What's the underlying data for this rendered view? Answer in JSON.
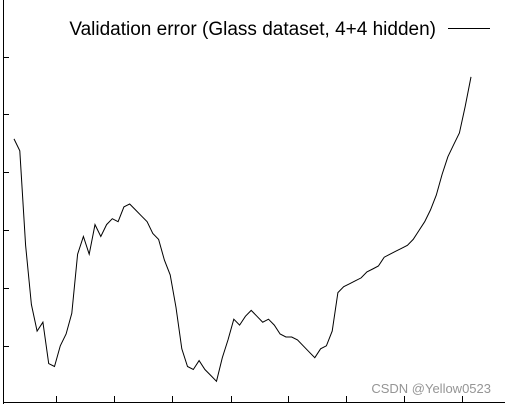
{
  "chart_data": {
    "type": "line",
    "legend_position": "top-right",
    "grid": false,
    "series": [
      {
        "name": "Validation error (Glass dataset, 4+4 hidden)",
        "color": "#000000",
        "x": [
          1,
          2,
          3,
          4,
          5,
          6,
          7,
          8,
          9,
          10,
          11,
          12,
          13,
          14,
          15,
          16,
          17,
          18,
          19,
          20,
          21,
          22,
          23,
          24,
          25,
          26,
          27,
          28,
          29,
          30,
          31,
          32,
          33,
          34,
          35,
          36,
          37,
          38,
          39,
          40,
          41,
          42,
          43,
          44,
          45,
          46,
          47,
          48,
          49,
          50,
          51,
          52,
          53,
          54,
          55,
          56,
          57,
          58,
          59,
          60,
          61,
          62,
          63,
          64,
          65,
          66,
          67,
          68,
          69,
          70,
          71,
          72,
          73,
          74,
          75,
          76,
          77,
          78,
          79,
          80
        ],
        "values": [
          13.95,
          13.75,
          12.15,
          11.15,
          10.7,
          10.85,
          10.15,
          10.1,
          10.45,
          10.65,
          11.0,
          12.0,
          12.3,
          12.0,
          12.5,
          12.3,
          12.5,
          12.6,
          12.55,
          12.8,
          12.85,
          12.75,
          12.65,
          12.55,
          12.35,
          12.25,
          11.9,
          11.65,
          11.1,
          10.4,
          10.1,
          10.05,
          10.2,
          10.05,
          9.95,
          9.85,
          10.25,
          10.55,
          10.9,
          10.8,
          10.95,
          11.05,
          10.95,
          10.85,
          10.9,
          10.8,
          10.65,
          10.6,
          10.6,
          10.55,
          10.45,
          10.35,
          10.25,
          10.4,
          10.45,
          10.7,
          11.35,
          11.45,
          11.5,
          11.55,
          11.6,
          11.7,
          11.75,
          11.8,
          11.95,
          12.0,
          12.05,
          12.1,
          12.15,
          12.25,
          12.4,
          12.55,
          12.75,
          13.0,
          13.35,
          13.65,
          13.85,
          14.05,
          14.5,
          15.0
        ]
      }
    ],
    "xlim": [
      1,
      80
    ],
    "ylim": [
      9.5,
      16.3
    ]
  },
  "watermark": "CSDN @Yellow0523"
}
